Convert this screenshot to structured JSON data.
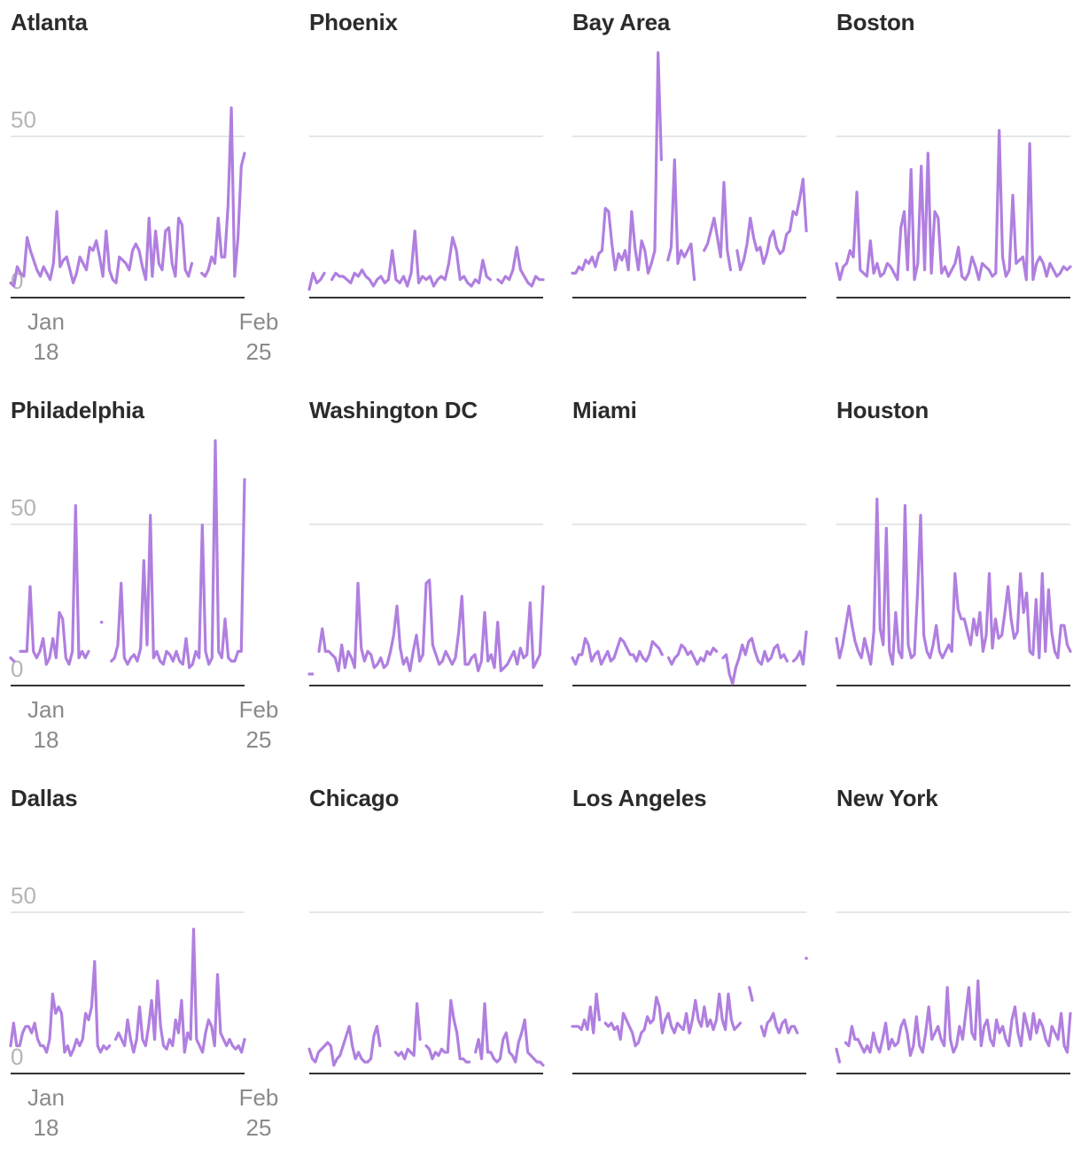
{
  "chart_data": {
    "type": "line",
    "layout": "small-multiples",
    "x_range": [
      "Jan 18",
      "Feb 25"
    ],
    "x_tick_labels": [
      {
        "month": "Jan",
        "day": "18"
      },
      {
        "month": "Feb",
        "day": "25"
      }
    ],
    "y_ticks": [
      0,
      50
    ],
    "ylim": [
      0,
      60
    ],
    "grid": true,
    "line_color": "#b07fe0",
    "panels": [
      {
        "name": "Atlanta",
        "values": [
          4,
          3,
          9,
          7,
          6,
          18,
          14,
          11,
          8,
          6,
          9,
          7,
          5,
          10,
          26,
          9,
          11,
          12,
          8,
          4,
          7,
          12,
          10,
          8,
          15,
          14,
          17,
          12,
          6,
          20,
          8,
          5,
          4,
          12,
          11,
          10,
          8,
          14,
          16,
          14,
          9,
          5,
          24,
          6,
          20,
          10,
          8,
          20,
          21,
          10,
          6,
          24,
          22,
          8,
          6,
          10,
          null,
          null,
          7,
          6,
          8,
          12,
          10,
          24,
          12,
          12,
          28,
          58,
          6,
          18,
          40,
          44
        ]
      },
      {
        "name": "Phoenix",
        "values": [
          2,
          7,
          4,
          5,
          7,
          null,
          5,
          7,
          6,
          6,
          5,
          4,
          7,
          6,
          8,
          6,
          5,
          3,
          5,
          6,
          4,
          5,
          14,
          5,
          4,
          6,
          3,
          7,
          20,
          4,
          6,
          5,
          6,
          3,
          5,
          6,
          5,
          10,
          18,
          14,
          5,
          6,
          4,
          3,
          5,
          4,
          11,
          6,
          5,
          null,
          5,
          4,
          6,
          5,
          8,
          15,
          8,
          6,
          4,
          3,
          6,
          5,
          5
        ]
      },
      {
        "name": "Bay Area",
        "values": [
          7,
          7,
          9,
          8,
          11,
          10,
          12,
          9,
          13,
          14,
          27,
          26,
          16,
          8,
          13,
          11,
          14,
          8,
          26,
          15,
          8,
          17,
          14,
          7,
          10,
          14,
          75,
          42,
          null,
          11,
          15,
          42,
          10,
          14,
          12,
          14,
          16,
          5,
          null,
          null,
          14,
          16,
          20,
          24,
          18,
          12,
          35,
          14,
          8,
          null,
          14,
          8,
          11,
          16,
          24,
          18,
          14,
          15,
          10,
          13,
          18,
          20,
          15,
          13,
          14,
          19,
          20,
          26,
          25,
          30,
          36,
          20
        ]
      },
      {
        "name": "Boston",
        "values": [
          10,
          5,
          9,
          10,
          14,
          12,
          32,
          8,
          7,
          6,
          17,
          7,
          10,
          6,
          7,
          10,
          9,
          7,
          5,
          21,
          26,
          8,
          39,
          5,
          10,
          40,
          8,
          44,
          7,
          26,
          24,
          7,
          9,
          6,
          8,
          10,
          15,
          6,
          5,
          7,
          12,
          9,
          5,
          10,
          9,
          8,
          6,
          7,
          51,
          12,
          6,
          8,
          31,
          10,
          11,
          12,
          5,
          47,
          5,
          10,
          12,
          10,
          6,
          10,
          8,
          6,
          7,
          9,
          8,
          9
        ]
      },
      {
        "name": "Philadelphia",
        "values": [
          8,
          7,
          null,
          10,
          10,
          10,
          30,
          10,
          8,
          10,
          14,
          6,
          8,
          14,
          8,
          22,
          20,
          8,
          6,
          10,
          55,
          8,
          10,
          8,
          10,
          null,
          null,
          null,
          19,
          null,
          null,
          7,
          8,
          12,
          31,
          8,
          6,
          8,
          9,
          7,
          11,
          38,
          12,
          52,
          8,
          10,
          7,
          6,
          10,
          9,
          7,
          10,
          7,
          6,
          14,
          5,
          6,
          10,
          8,
          49,
          10,
          6,
          8,
          75,
          10,
          8,
          20,
          8,
          7,
          7,
          10,
          10,
          63
        ]
      },
      {
        "name": "Washington DC",
        "values": [
          3,
          3,
          null,
          10,
          17,
          10,
          10,
          9,
          8,
          4,
          12,
          5,
          10,
          8,
          5,
          31,
          11,
          7,
          10,
          9,
          5,
          6,
          8,
          5,
          6,
          10,
          15,
          24,
          11,
          6,
          8,
          4,
          10,
          15,
          7,
          9,
          31,
          32,
          12,
          9,
          6,
          7,
          10,
          8,
          6,
          8,
          16,
          27,
          6,
          6,
          8,
          9,
          4,
          7,
          22,
          7,
          9,
          5,
          19,
          4,
          5,
          6,
          8,
          10,
          6,
          11,
          8,
          9,
          25,
          5,
          7,
          9,
          30
        ]
      },
      {
        "name": "Miami",
        "values": [
          8,
          6,
          9,
          9,
          14,
          12,
          7,
          9,
          10,
          6,
          8,
          10,
          7,
          8,
          11,
          14,
          13,
          11,
          9,
          9,
          7,
          10,
          8,
          7,
          9,
          13,
          12,
          11,
          9,
          null,
          8,
          6,
          8,
          9,
          12,
          11,
          9,
          10,
          8,
          6,
          8,
          7,
          10,
          9,
          11,
          10,
          null,
          8,
          9,
          3,
          0,
          5,
          8,
          12,
          9,
          13,
          14,
          10,
          7,
          6,
          10,
          7,
          8,
          11,
          12,
          8,
          9,
          7,
          null,
          7,
          8,
          10,
          6,
          16
        ]
      },
      {
        "name": "Houston",
        "values": [
          14,
          8,
          12,
          18,
          24,
          18,
          13,
          10,
          8,
          14,
          10,
          6,
          16,
          57,
          17,
          12,
          48,
          10,
          6,
          22,
          10,
          8,
          55,
          12,
          8,
          9,
          28,
          52,
          15,
          10,
          8,
          12,
          18,
          10,
          8,
          10,
          12,
          10,
          34,
          23,
          20,
          20,
          16,
          12,
          20,
          15,
          22,
          10,
          15,
          34,
          11,
          20,
          14,
          15,
          22,
          30,
          20,
          14,
          16,
          34,
          22,
          28,
          10,
          9,
          26,
          8,
          34,
          10,
          29,
          16,
          10,
          8,
          18,
          18,
          12,
          10
        ]
      },
      {
        "name": "Dallas",
        "values": [
          8,
          15,
          8,
          8,
          12,
          14,
          14,
          12,
          15,
          10,
          8,
          8,
          6,
          10,
          24,
          18,
          20,
          18,
          6,
          8,
          5,
          7,
          10,
          8,
          10,
          18,
          16,
          20,
          34,
          8,
          6,
          8,
          7,
          8,
          null,
          10,
          12,
          10,
          8,
          16,
          10,
          6,
          10,
          20,
          10,
          8,
          14,
          22,
          10,
          28,
          14,
          8,
          7,
          10,
          8,
          16,
          12,
          22,
          6,
          12,
          10,
          44,
          10,
          8,
          6,
          12,
          16,
          14,
          8,
          30,
          12,
          10,
          8,
          10,
          8,
          7,
          8,
          6,
          10
        ]
      },
      {
        "name": "Chicago",
        "values": [
          7,
          4,
          3,
          6,
          7,
          8,
          9,
          8,
          2,
          4,
          5,
          8,
          11,
          14,
          8,
          4,
          6,
          4,
          3,
          3,
          4,
          11,
          14,
          8,
          null,
          null,
          null,
          null,
          6,
          5,
          6,
          4,
          7,
          6,
          5,
          21,
          10,
          null,
          8,
          7,
          4,
          6,
          5,
          7,
          6,
          6,
          22,
          16,
          12,
          4,
          4,
          3,
          3,
          null,
          6,
          10,
          4,
          21,
          6,
          6,
          4,
          3,
          4,
          10,
          12,
          6,
          5,
          3,
          9,
          12,
          16,
          6,
          5,
          4,
          3,
          3,
          2
        ]
      },
      {
        "name": "Los Angeles",
        "values": [
          14,
          14,
          14,
          13,
          16,
          13,
          20,
          12,
          24,
          16,
          null,
          15,
          14,
          15,
          13,
          14,
          10,
          18,
          16,
          14,
          12,
          8,
          9,
          12,
          13,
          17,
          15,
          16,
          23,
          20,
          12,
          16,
          18,
          14,
          12,
          15,
          14,
          13,
          18,
          12,
          16,
          22,
          16,
          14,
          20,
          14,
          16,
          13,
          16,
          24,
          16,
          13,
          24,
          16,
          13,
          14,
          15,
          null,
          null,
          26,
          22,
          null,
          null,
          14,
          11,
          15,
          16,
          18,
          14,
          12,
          15,
          16,
          12,
          14,
          14,
          12,
          null,
          null,
          35
        ]
      },
      {
        "name": "New York",
        "values": [
          7,
          3,
          null,
          9,
          8,
          14,
          10,
          10,
          8,
          6,
          8,
          6,
          12,
          8,
          6,
          10,
          15,
          7,
          10,
          8,
          9,
          14,
          16,
          12,
          5,
          8,
          17,
          8,
          6,
          12,
          20,
          10,
          12,
          14,
          10,
          8,
          26,
          10,
          6,
          8,
          14,
          10,
          18,
          26,
          12,
          10,
          28,
          8,
          14,
          16,
          10,
          8,
          16,
          12,
          14,
          10,
          8,
          16,
          20,
          12,
          8,
          18,
          14,
          10,
          18,
          12,
          16,
          14,
          10,
          8,
          14,
          12,
          10,
          18,
          8,
          6,
          18
        ]
      }
    ]
  }
}
